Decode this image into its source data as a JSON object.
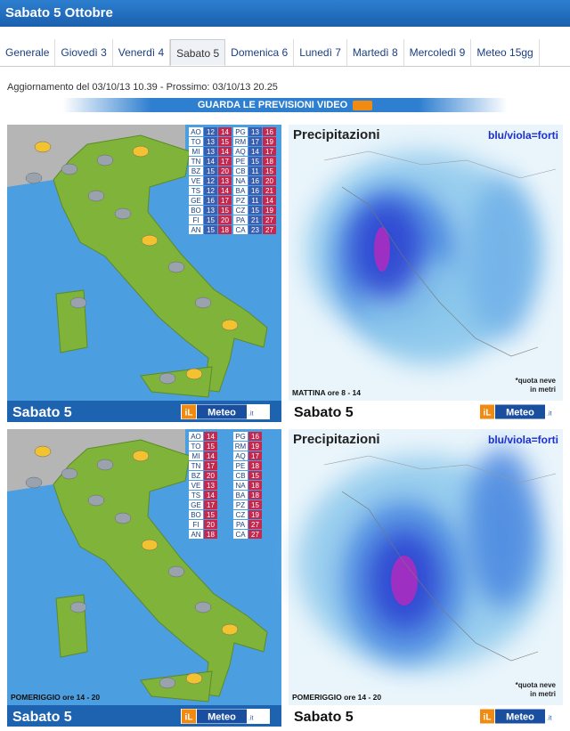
{
  "header": {
    "title": "Sabato 5 Ottobre"
  },
  "tabs": [
    {
      "label": "Generale"
    },
    {
      "label": "Giovedì 3"
    },
    {
      "label": "Venerdì 4"
    },
    {
      "label": "Sabato 5",
      "active": true
    },
    {
      "label": "Domenica 6"
    },
    {
      "label": "Lunedì 7"
    },
    {
      "label": "Martedì 8"
    },
    {
      "label": "Mercoledì 9"
    },
    {
      "label": "Meteo 15gg"
    }
  ],
  "update": "Aggiornamento del 03/10/13 10.39 - Prossimo: 03/10/13 20.25",
  "video_button": "GUARDA LE PREVISIONI VIDEO",
  "panels": [
    {
      "day": "Sabato 5",
      "period": "MATTINA ore 8 - 14",
      "period_on_forecast_map": false,
      "precip_title": "Precipitazioni",
      "precip_legend": "blu/viola=forti",
      "snow_note": [
        "*quota neve",
        "in metri"
      ],
      "logo": [
        "iL",
        "Meteo",
        ".it"
      ],
      "table": {
        "left": [
          {
            "city": "AO",
            "min": 12,
            "max": 14
          },
          {
            "city": "TO",
            "min": 13,
            "max": 15
          },
          {
            "city": "MI",
            "min": 13,
            "max": 14
          },
          {
            "city": "TN",
            "min": 14,
            "max": 17
          },
          {
            "city": "BZ",
            "min": 15,
            "max": 20
          },
          {
            "city": "VE",
            "min": 12,
            "max": 13
          },
          {
            "city": "TS",
            "min": 12,
            "max": 14
          },
          {
            "city": "GE",
            "min": 16,
            "max": 17
          },
          {
            "city": "BO",
            "min": 13,
            "max": 15
          },
          {
            "city": "FI",
            "min": 15,
            "max": 20
          },
          {
            "city": "AN",
            "min": 15,
            "max": 18
          }
        ],
        "right": [
          {
            "city": "PG",
            "min": 13,
            "max": 16
          },
          {
            "city": "RM",
            "min": 17,
            "max": 19
          },
          {
            "city": "AQ",
            "min": 14,
            "max": 17
          },
          {
            "city": "PE",
            "min": 15,
            "max": 18
          },
          {
            "city": "CB",
            "min": 11,
            "max": 15
          },
          {
            "city": "NA",
            "min": 16,
            "max": 20
          },
          {
            "city": "BA",
            "min": 16,
            "max": 21
          },
          {
            "city": "PZ",
            "min": 11,
            "max": 14
          },
          {
            "city": "CZ",
            "min": 15,
            "max": 19
          },
          {
            "city": "PA",
            "min": 21,
            "max": 27
          },
          {
            "city": "CA",
            "min": 23,
            "max": 27
          }
        ]
      }
    },
    {
      "day": "Sabato 5",
      "period": "POMERIGGIO ore 14 - 20",
      "period_on_forecast_map": true,
      "precip_title": "Precipitazioni",
      "precip_legend": "blu/viola=forti",
      "snow_note": [
        "*quota neve",
        "in metri"
      ],
      "logo": [
        "iL",
        "Meteo",
        ".it"
      ],
      "table": {
        "left": [
          {
            "city": "AO",
            "max": 14
          },
          {
            "city": "TO",
            "max": 15
          },
          {
            "city": "MI",
            "max": 14
          },
          {
            "city": "TN",
            "max": 17
          },
          {
            "city": "BZ",
            "max": 20
          },
          {
            "city": "VE",
            "max": 13
          },
          {
            "city": "TS",
            "max": 14
          },
          {
            "city": "GE",
            "max": 17
          },
          {
            "city": "BO",
            "max": 15
          },
          {
            "city": "FI",
            "max": 20
          },
          {
            "city": "AN",
            "max": 18
          }
        ],
        "right": [
          {
            "city": "PG",
            "max": 16
          },
          {
            "city": "RM",
            "max": 19
          },
          {
            "city": "AQ",
            "max": 17
          },
          {
            "city": "PE",
            "max": 18
          },
          {
            "city": "CB",
            "max": 15
          },
          {
            "city": "NA",
            "max": 18
          },
          {
            "city": "BA",
            "max": 18
          },
          {
            "city": "PZ",
            "max": 15
          },
          {
            "city": "CZ",
            "max": 19
          },
          {
            "city": "PA",
            "max": 27
          },
          {
            "city": "CA",
            "max": 27
          }
        ]
      }
    }
  ]
}
